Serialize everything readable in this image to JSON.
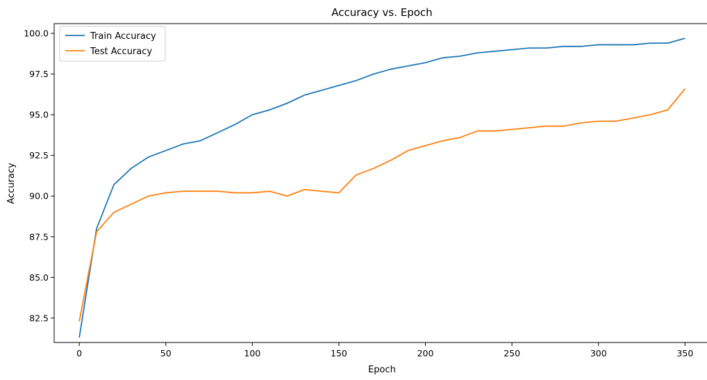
{
  "chart_data": {
    "type": "line",
    "title": "Accuracy vs. Epoch",
    "xlabel": "Epoch",
    "ylabel": "Accuracy",
    "xlim": [
      -14.5,
      363.5
    ],
    "ylim": [
      81.0,
      100.6
    ],
    "xticks": [
      0,
      50,
      100,
      150,
      200,
      250,
      300,
      350
    ],
    "yticks": [
      82.5,
      85.0,
      87.5,
      90.0,
      92.5,
      95.0,
      97.5,
      100.0
    ],
    "xtick_labels": [
      "0",
      "50",
      "100",
      "150",
      "200",
      "250",
      "300",
      "350"
    ],
    "ytick_labels": [
      "82.5",
      "85.0",
      "87.5",
      "90.0",
      "92.5",
      "95.0",
      "97.5",
      "100.0"
    ],
    "grid": false,
    "legend_position": "upper-left",
    "series": [
      {
        "name": "Train Accuracy",
        "color": "#1f77b4",
        "x": [
          0,
          10,
          20,
          30,
          40,
          50,
          60,
          70,
          80,
          90,
          100,
          110,
          120,
          130,
          140,
          150,
          160,
          170,
          180,
          190,
          200,
          210,
          220,
          230,
          240,
          250,
          260,
          270,
          280,
          290,
          300,
          310,
          320,
          330,
          340,
          350
        ],
        "values": [
          81.3,
          88.0,
          90.7,
          91.7,
          92.4,
          92.8,
          93.2,
          93.4,
          93.9,
          94.4,
          95.0,
          95.3,
          95.7,
          96.2,
          96.5,
          96.8,
          97.1,
          97.5,
          97.8,
          98.0,
          98.2,
          98.5,
          98.6,
          98.8,
          98.9,
          99.0,
          99.1,
          99.1,
          99.2,
          99.2,
          99.3,
          99.3,
          99.3,
          99.4,
          99.4,
          99.7
        ]
      },
      {
        "name": "Test Accuracy",
        "color": "#ff7f0e",
        "x": [
          0,
          10,
          20,
          30,
          40,
          50,
          60,
          70,
          80,
          90,
          100,
          110,
          120,
          130,
          140,
          150,
          160,
          170,
          180,
          190,
          200,
          210,
          220,
          230,
          240,
          250,
          260,
          270,
          280,
          290,
          300,
          310,
          320,
          330,
          340,
          350
        ],
        "values": [
          82.3,
          87.8,
          89.0,
          89.5,
          90.0,
          90.2,
          90.3,
          90.3,
          90.3,
          90.2,
          90.2,
          90.3,
          90.0,
          90.4,
          90.3,
          90.2,
          91.3,
          91.7,
          92.2,
          92.8,
          93.1,
          93.4,
          93.6,
          94.0,
          94.0,
          94.1,
          94.2,
          94.3,
          94.3,
          94.5,
          94.6,
          94.6,
          94.8,
          95.0,
          95.3,
          96.6
        ]
      }
    ]
  }
}
